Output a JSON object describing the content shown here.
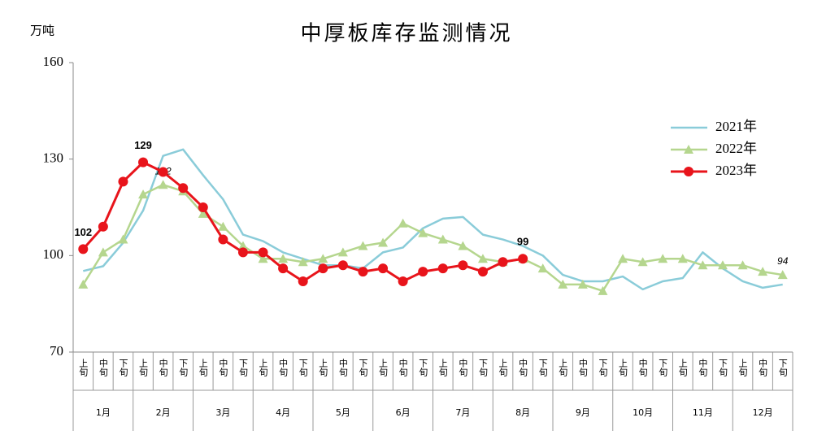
{
  "chart_data": {
    "type": "line",
    "title": "中厚板库存监测情况",
    "y_label": "万吨",
    "categories": [
      "上旬",
      "中旬",
      "下旬",
      "上旬",
      "中旬",
      "下旬",
      "上旬",
      "中旬",
      "下旬",
      "上旬",
      "中旬",
      "下旬",
      "上旬",
      "中旬",
      "下旬",
      "上旬",
      "中旬",
      "下旬",
      "上旬",
      "中旬",
      "下旬",
      "上旬",
      "中旬",
      "下旬",
      "上旬",
      "中旬",
      "下旬",
      "上旬",
      "中旬",
      "下旬",
      "上旬",
      "中旬",
      "下旬",
      "上旬",
      "中旬",
      "下旬"
    ],
    "months": [
      "1月",
      "2月",
      "3月",
      "4月",
      "5月",
      "6月",
      "7月",
      "8月",
      "9月",
      "10月",
      "11月",
      "12月"
    ],
    "ylim": [
      70,
      160
    ],
    "yticks": [
      70,
      100,
      130,
      160
    ],
    "legend": "right",
    "series": [
      {
        "name": "2021年",
        "color": "#8accd9",
        "marker": "none",
        "values": [
          95.2,
          96.7,
          104,
          114,
          131,
          133,
          125,
          117.5,
          106.5,
          104.5,
          101,
          99,
          97,
          97,
          96,
          101,
          102.5,
          108.5,
          111.5,
          112,
          106.5,
          105,
          103,
          100,
          94,
          92,
          92,
          93.5,
          89.5,
          92,
          93,
          101,
          96,
          92,
          90,
          91
        ]
      },
      {
        "name": "2022年",
        "color": "#b5d68e",
        "marker": "triangle",
        "label_points": [
          4,
          35
        ],
        "label_style": "italic",
        "values": [
          91,
          101,
          105,
          119,
          122,
          120,
          113,
          109,
          103,
          99,
          99,
          98,
          99,
          101,
          103,
          104,
          110,
          107,
          105,
          103,
          99,
          98,
          99,
          96,
          91,
          91,
          89,
          99,
          98,
          99,
          99,
          97,
          97,
          97,
          95,
          94
        ]
      },
      {
        "name": "2023年",
        "color": "#e8141b",
        "marker": "circle",
        "label_points": [
          0,
          3,
          22
        ],
        "label_style": "bold",
        "values": [
          102,
          109,
          123,
          129,
          126,
          121,
          115,
          105,
          101,
          101,
          96,
          92,
          96,
          97,
          95,
          96,
          92,
          95,
          96,
          97,
          95,
          98,
          99,
          null,
          null,
          null,
          null,
          null,
          null,
          null,
          null,
          null,
          null,
          null,
          null,
          null
        ]
      }
    ]
  }
}
